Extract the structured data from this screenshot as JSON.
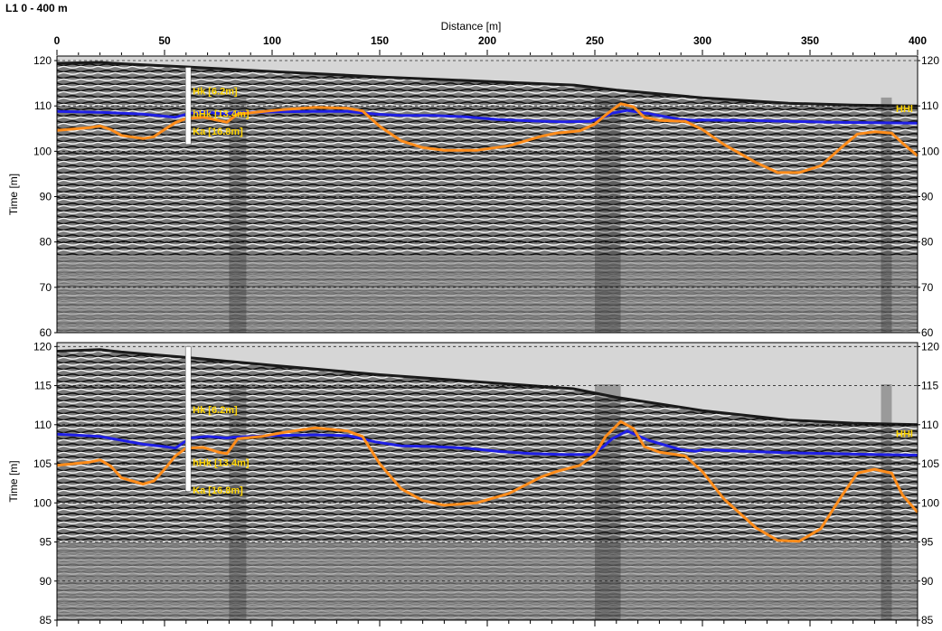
{
  "header": {
    "title": "L1 0 - 400 m"
  },
  "chart_data": {
    "type": "line",
    "xlabel": "Distance [m]",
    "x_ticks": [
      0,
      50,
      100,
      150,
      200,
      250,
      300,
      350,
      400
    ],
    "xlim": [
      0,
      400
    ],
    "panels": [
      {
        "ylabel": "Time [m]",
        "ylim": [
          60,
          121
        ],
        "y_ticks": [
          60,
          70,
          80,
          90,
          100,
          110,
          120
        ],
        "grid": "dashed",
        "series": [
          {
            "color": "#1f1fe6",
            "points": [
              [
                0,
                108.8
              ],
              [
                20,
                108.6
              ],
              [
                40,
                108.2
              ],
              [
                55,
                107.5
              ],
              [
                62,
                108.4
              ],
              [
                70,
                108.6
              ],
              [
                79,
                108.2
              ],
              [
                82,
                108.5
              ],
              [
                100,
                108.7
              ],
              [
                120,
                108.8
              ],
              [
                135,
                108.8
              ],
              [
                142,
                108.5
              ],
              [
                148,
                108.2
              ],
              [
                160,
                107.9
              ],
              [
                175,
                107.9
              ],
              [
                190,
                107.6
              ],
              [
                205,
                107.0
              ],
              [
                220,
                106.7
              ],
              [
                235,
                106.5
              ],
              [
                248,
                106.6
              ],
              [
                254,
                107.5
              ],
              [
                258,
                108.4
              ],
              [
                265,
                109.0
              ],
              [
                275,
                108.3
              ],
              [
                290,
                107.0
              ],
              [
                297,
                106.8
              ],
              [
                300,
                106.9
              ],
              [
                320,
                106.8
              ],
              [
                340,
                106.6
              ],
              [
                360,
                106.4
              ],
              [
                380,
                106.3
              ],
              [
                400,
                106.2
              ]
            ]
          },
          {
            "color": "#ff8c1a",
            "points": [
              [
                0,
                104.6
              ],
              [
                15,
                105.2
              ],
              [
                20,
                105.6
              ],
              [
                25,
                104.8
              ],
              [
                30,
                103.5
              ],
              [
                40,
                102.8
              ],
              [
                45,
                103.2
              ],
              [
                50,
                104.8
              ],
              [
                55,
                106.3
              ],
              [
                60,
                107.2
              ],
              [
                68,
                107.5
              ],
              [
                75,
                106.8
              ],
              [
                79,
                106.4
              ],
              [
                84,
                108.2
              ],
              [
                92,
                108.6
              ],
              [
                105,
                109.2
              ],
              [
                120,
                109.7
              ],
              [
                135,
                109.5
              ],
              [
                142,
                108.9
              ],
              [
                150,
                105.5
              ],
              [
                160,
                102.3
              ],
              [
                170,
                100.8
              ],
              [
                180,
                100.2
              ],
              [
                195,
                100.2
              ],
              [
                210,
                101.2
              ],
              [
                225,
                103.3
              ],
              [
                232,
                104.0
              ],
              [
                243,
                104.5
              ],
              [
                250,
                106.0
              ],
              [
                255,
                108.0
              ],
              [
                262,
                110.5
              ],
              [
                268,
                109.8
              ],
              [
                273,
                107.5
              ],
              [
                280,
                106.8
              ],
              [
                292,
                106.6
              ],
              [
                300,
                104.8
              ],
              [
                310,
                101.5
              ],
              [
                325,
                97.5
              ],
              [
                335,
                95.3
              ],
              [
                345,
                95.3
              ],
              [
                355,
                96.8
              ],
              [
                365,
                101.0
              ],
              [
                372,
                103.8
              ],
              [
                380,
                104.3
              ],
              [
                388,
                104.0
              ],
              [
                393,
                101.8
              ],
              [
                400,
                99.0
              ]
            ]
          }
        ],
        "annotations": [
          "Hk [6.2m]",
          "hHk [13.4m]",
          "Ka [16.8m]",
          "HHl"
        ]
      },
      {
        "ylabel": "Time [m]",
        "ylim": [
          85,
          120.5
        ],
        "y_ticks": [
          85,
          90,
          95,
          100,
          105,
          110,
          115,
          120
        ],
        "grid": "dashed",
        "series": [
          {
            "color": "#1f1fe6",
            "points": [
              [
                0,
                108.8
              ],
              [
                20,
                108.5
              ],
              [
                40,
                107.5
              ],
              [
                50,
                107.2
              ],
              [
                55,
                107.0
              ],
              [
                62,
                108.3
              ],
              [
                70,
                108.5
              ],
              [
                79,
                108.3
              ],
              [
                82,
                108.4
              ],
              [
                100,
                108.6
              ],
              [
                120,
                108.7
              ],
              [
                135,
                108.6
              ],
              [
                142,
                108.2
              ],
              [
                148,
                107.8
              ],
              [
                160,
                107.3
              ],
              [
                175,
                107.2
              ],
              [
                190,
                107.0
              ],
              [
                205,
                106.6
              ],
              [
                220,
                106.3
              ],
              [
                235,
                106.2
              ],
              [
                248,
                106.2
              ],
              [
                254,
                107.2
              ],
              [
                258,
                108.2
              ],
              [
                265,
                109.2
              ],
              [
                275,
                108.0
              ],
              [
                290,
                106.8
              ],
              [
                297,
                106.6
              ],
              [
                300,
                106.8
              ],
              [
                320,
                106.6
              ],
              [
                340,
                106.4
              ],
              [
                360,
                106.3
              ],
              [
                380,
                106.2
              ],
              [
                400,
                106.1
              ]
            ]
          },
          {
            "color": "#ff8c1a",
            "points": [
              [
                0,
                104.8
              ],
              [
                15,
                105.2
              ],
              [
                20,
                105.5
              ],
              [
                25,
                104.7
              ],
              [
                30,
                103.2
              ],
              [
                40,
                102.4
              ],
              [
                45,
                102.8
              ],
              [
                50,
                104.3
              ],
              [
                55,
                106.0
              ],
              [
                60,
                107.0
              ],
              [
                68,
                107.1
              ],
              [
                75,
                106.5
              ],
              [
                79,
                106.3
              ],
              [
                84,
                108.2
              ],
              [
                95,
                108.5
              ],
              [
                105,
                109.0
              ],
              [
                120,
                109.6
              ],
              [
                135,
                109.2
              ],
              [
                142,
                108.5
              ],
              [
                150,
                105.0
              ],
              [
                160,
                101.8
              ],
              [
                170,
                100.3
              ],
              [
                180,
                99.7
              ],
              [
                195,
                100.0
              ],
              [
                210,
                101.2
              ],
              [
                225,
                103.3
              ],
              [
                232,
                104.0
              ],
              [
                243,
                104.8
              ],
              [
                250,
                106.2
              ],
              [
                255,
                108.5
              ],
              [
                262,
                110.4
              ],
              [
                268,
                109.5
              ],
              [
                273,
                107.2
              ],
              [
                280,
                106.5
              ],
              [
                292,
                106.0
              ],
              [
                300,
                104.0
              ],
              [
                310,
                100.5
              ],
              [
                325,
                96.8
              ],
              [
                335,
                95.2
              ],
              [
                345,
                95.1
              ],
              [
                355,
                96.7
              ],
              [
                365,
                101.0
              ],
              [
                372,
                103.8
              ],
              [
                380,
                104.3
              ],
              [
                388,
                103.8
              ],
              [
                393,
                101.0
              ],
              [
                400,
                98.8
              ]
            ]
          }
        ],
        "annotations": [
          "Hk [6.2m]",
          "hHk [13.4m]",
          "Ka [16.8m]",
          "HHl"
        ]
      }
    ]
  },
  "style": {
    "sky_color": "#d6d6d6",
    "radar_color": "#8a8a8a",
    "annotation_color": "#ffd400",
    "borehole_color": "#ffffff"
  }
}
